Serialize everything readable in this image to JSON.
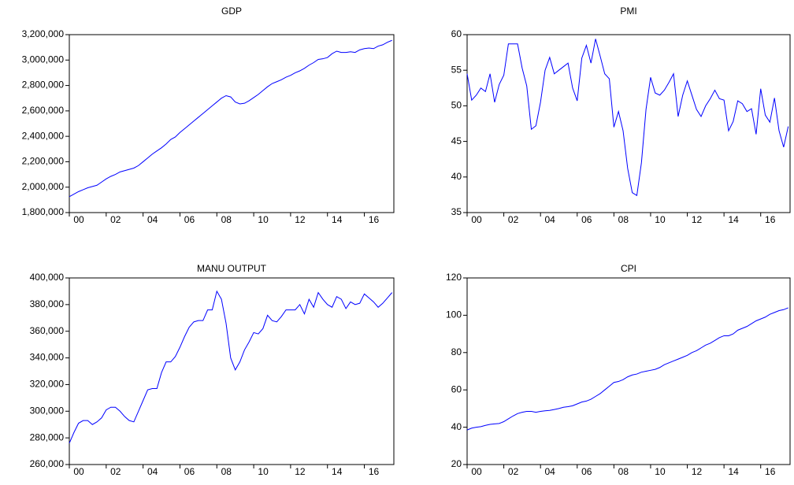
{
  "chart_data": [
    {
      "type": "line",
      "title": "GDP",
      "x": [
        2000,
        2000.25,
        2000.5,
        2000.75,
        2001,
        2001.25,
        2001.5,
        2001.75,
        2002,
        2002.25,
        2002.5,
        2002.75,
        2003,
        2003.25,
        2003.5,
        2003.75,
        2004,
        2004.25,
        2004.5,
        2004.75,
        2005,
        2005.25,
        2005.5,
        2005.75,
        2006,
        2006.25,
        2006.5,
        2006.75,
        2007,
        2007.25,
        2007.5,
        2007.75,
        2008,
        2008.25,
        2008.5,
        2008.75,
        2009,
        2009.25,
        2009.5,
        2009.75,
        2010,
        2010.25,
        2010.5,
        2010.75,
        2011,
        2011.25,
        2011.5,
        2011.75,
        2012,
        2012.25,
        2012.5,
        2012.75,
        2013,
        2013.25,
        2013.5,
        2013.75,
        2014,
        2014.25,
        2014.5,
        2014.75,
        2015,
        2015.25,
        2015.5,
        2015.75,
        2016,
        2016.25,
        2016.5,
        2016.75,
        2017,
        2017.25,
        2017.5
      ],
      "series": [
        {
          "name": "GDP",
          "color": "#0000ff",
          "values": [
            1925000,
            1945000,
            1965000,
            1980000,
            1995000,
            2005000,
            2015000,
            2040000,
            2065000,
            2085000,
            2100000,
            2120000,
            2130000,
            2140000,
            2150000,
            2170000,
            2200000,
            2230000,
            2260000,
            2285000,
            2310000,
            2340000,
            2375000,
            2395000,
            2430000,
            2460000,
            2490000,
            2520000,
            2550000,
            2580000,
            2610000,
            2640000,
            2670000,
            2700000,
            2720000,
            2710000,
            2670000,
            2655000,
            2660000,
            2680000,
            2705000,
            2730000,
            2760000,
            2790000,
            2815000,
            2830000,
            2845000,
            2865000,
            2880000,
            2900000,
            2915000,
            2935000,
            2960000,
            2980000,
            3005000,
            3010000,
            3020000,
            3050000,
            3070000,
            3060000,
            3060000,
            3065000,
            3060000,
            3080000,
            3090000,
            3095000,
            3090000,
            3110000,
            3120000,
            3140000,
            3155000
          ]
        }
      ],
      "xlim": [
        2000,
        2017.6
      ],
      "xticks": [
        {
          "value": 2000,
          "label": "00"
        },
        {
          "value": 2002,
          "label": "02"
        },
        {
          "value": 2004,
          "label": "04"
        },
        {
          "value": 2006,
          "label": "06"
        },
        {
          "value": 2008,
          "label": "08"
        },
        {
          "value": 2010,
          "label": "10"
        },
        {
          "value": 2012,
          "label": "12"
        },
        {
          "value": 2014,
          "label": "14"
        },
        {
          "value": 2016,
          "label": "16"
        }
      ],
      "ylim": [
        1800000,
        3200000
      ],
      "yticks": [
        {
          "value": 1800000,
          "label": "1,800,000"
        },
        {
          "value": 2000000,
          "label": "2,000,000"
        },
        {
          "value": 2200000,
          "label": "2,200,000"
        },
        {
          "value": 2400000,
          "label": "2,400,000"
        },
        {
          "value": 2600000,
          "label": "2,600,000"
        },
        {
          "value": 2800000,
          "label": "2,800,000"
        },
        {
          "value": 3000000,
          "label": "3,000,000"
        },
        {
          "value": 3200000,
          "label": "3,200,000"
        }
      ]
    },
    {
      "type": "line",
      "title": "PMI",
      "x": [
        2000,
        2000.25,
        2000.5,
        2000.75,
        2001,
        2001.25,
        2001.5,
        2001.75,
        2002,
        2002.25,
        2002.5,
        2002.75,
        2003,
        2003.25,
        2003.5,
        2003.75,
        2004,
        2004.25,
        2004.5,
        2004.75,
        2005,
        2005.25,
        2005.5,
        2005.75,
        2006,
        2006.25,
        2006.5,
        2006.75,
        2007,
        2007.25,
        2007.5,
        2007.75,
        2008,
        2008.25,
        2008.5,
        2008.75,
        2009,
        2009.25,
        2009.5,
        2009.75,
        2010,
        2010.25,
        2010.5,
        2010.75,
        2011,
        2011.25,
        2011.5,
        2011.75,
        2012,
        2012.25,
        2012.5,
        2012.75,
        2013,
        2013.25,
        2013.5,
        2013.75,
        2014,
        2014.25,
        2014.5,
        2014.75,
        2015,
        2015.25,
        2015.5,
        2015.75,
        2016,
        2016.25,
        2016.5,
        2016.75,
        2017,
        2017.25,
        2017.5
      ],
      "series": [
        {
          "name": "PMI",
          "color": "#0000ff",
          "values": [
            54.5,
            50.8,
            51.5,
            52.5,
            52.0,
            54.5,
            50.5,
            53.0,
            54.3,
            58.7,
            58.7,
            58.7,
            55.3,
            52.8,
            46.7,
            47.2,
            50.5,
            55.0,
            56.8,
            54.5,
            55.0,
            55.5,
            56.0,
            52.5,
            50.7,
            56.7,
            58.5,
            56.0,
            59.4,
            57.0,
            54.5,
            53.8,
            47.0,
            49.2,
            46.5,
            41.2,
            37.8,
            37.4,
            42.0,
            49.5,
            54.0,
            51.8,
            51.5,
            52.2,
            53.3,
            54.5,
            48.5,
            51.5,
            53.5,
            51.5,
            49.5,
            48.5,
            50.0,
            51.0,
            52.2,
            51.0,
            50.8,
            46.5,
            47.8,
            50.7,
            50.3,
            49.2,
            49.6,
            46.0,
            52.4,
            48.7,
            47.7,
            51.1,
            46.5,
            44.2,
            47.1
          ]
        }
      ],
      "xlim": [
        2000,
        2017.6
      ],
      "xticks": [
        {
          "value": 2000,
          "label": "00"
        },
        {
          "value": 2002,
          "label": "02"
        },
        {
          "value": 2004,
          "label": "04"
        },
        {
          "value": 2006,
          "label": "06"
        },
        {
          "value": 2008,
          "label": "08"
        },
        {
          "value": 2010,
          "label": "10"
        },
        {
          "value": 2012,
          "label": "12"
        },
        {
          "value": 2014,
          "label": "14"
        },
        {
          "value": 2016,
          "label": "16"
        }
      ],
      "ylim": [
        35,
        60
      ],
      "yticks": [
        35,
        40,
        45,
        50,
        55,
        60
      ]
    },
    {
      "type": "line",
      "title": "MANU OUTPUT",
      "x": [
        2000,
        2000.25,
        2000.5,
        2000.75,
        2001,
        2001.25,
        2001.5,
        2001.75,
        2002,
        2002.25,
        2002.5,
        2002.75,
        2003,
        2003.25,
        2003.5,
        2003.75,
        2004,
        2004.25,
        2004.5,
        2004.75,
        2005,
        2005.25,
        2005.5,
        2005.75,
        2006,
        2006.25,
        2006.5,
        2006.75,
        2007,
        2007.25,
        2007.5,
        2007.75,
        2008,
        2008.25,
        2008.5,
        2008.75,
        2009,
        2009.25,
        2009.5,
        2009.75,
        2010,
        2010.25,
        2010.5,
        2010.75,
        2011,
        2011.25,
        2011.5,
        2011.75,
        2012,
        2012.25,
        2012.5,
        2012.75,
        2013,
        2013.25,
        2013.5,
        2013.75,
        2014,
        2014.25,
        2014.5,
        2014.75,
        2015,
        2015.25,
        2015.5,
        2015.75,
        2016,
        2016.25,
        2016.5,
        2016.75,
        2017,
        2017.25,
        2017.5
      ],
      "series": [
        {
          "name": "MANU OUTPUT",
          "color": "#0000ff",
          "values": [
            276000,
            284000,
            291000,
            293000,
            293000,
            290000,
            292000,
            295000,
            301000,
            303000,
            303000,
            300000,
            296000,
            293000,
            292000,
            300000,
            308000,
            316000,
            317000,
            317000,
            329000,
            337000,
            337000,
            341000,
            348000,
            356000,
            363000,
            367000,
            368000,
            368000,
            376000,
            376000,
            390000,
            384000,
            366000,
            340000,
            331000,
            337000,
            346000,
            352000,
            359000,
            358000,
            362000,
            372000,
            368000,
            367000,
            371000,
            376000,
            376000,
            376000,
            380000,
            373000,
            384000,
            378000,
            389000,
            384000,
            380000,
            378000,
            386000,
            384000,
            377000,
            382000,
            380000,
            381000,
            388000,
            385000,
            382000,
            378000,
            381000,
            385000,
            389000
          ]
        }
      ],
      "xlim": [
        2000,
        2017.6
      ],
      "xticks": [
        {
          "value": 2000,
          "label": "00"
        },
        {
          "value": 2002,
          "label": "02"
        },
        {
          "value": 2004,
          "label": "04"
        },
        {
          "value": 2006,
          "label": "06"
        },
        {
          "value": 2008,
          "label": "08"
        },
        {
          "value": 2010,
          "label": "10"
        },
        {
          "value": 2012,
          "label": "12"
        },
        {
          "value": 2014,
          "label": "14"
        },
        {
          "value": 2016,
          "label": "16"
        }
      ],
      "ylim": [
        260000,
        400000
      ],
      "yticks": [
        {
          "value": 260000,
          "label": "260,000"
        },
        {
          "value": 280000,
          "label": "280,000"
        },
        {
          "value": 300000,
          "label": "300,000"
        },
        {
          "value": 320000,
          "label": "320,000"
        },
        {
          "value": 340000,
          "label": "340,000"
        },
        {
          "value": 360000,
          "label": "360,000"
        },
        {
          "value": 380000,
          "label": "380,000"
        },
        {
          "value": 400000,
          "label": "400,000"
        }
      ]
    },
    {
      "type": "line",
      "title": "CPI",
      "x": [
        2000,
        2000.25,
        2000.5,
        2000.75,
        2001,
        2001.25,
        2001.5,
        2001.75,
        2002,
        2002.25,
        2002.5,
        2002.75,
        2003,
        2003.25,
        2003.5,
        2003.75,
        2004,
        2004.25,
        2004.5,
        2004.75,
        2005,
        2005.25,
        2005.5,
        2005.75,
        2006,
        2006.25,
        2006.5,
        2006.75,
        2007,
        2007.25,
        2007.5,
        2007.75,
        2008,
        2008.25,
        2008.5,
        2008.75,
        2009,
        2009.25,
        2009.5,
        2009.75,
        2010,
        2010.25,
        2010.5,
        2010.75,
        2011,
        2011.25,
        2011.5,
        2011.75,
        2012,
        2012.25,
        2012.5,
        2012.75,
        2013,
        2013.25,
        2013.5,
        2013.75,
        2014,
        2014.25,
        2014.5,
        2014.75,
        2015,
        2015.25,
        2015.5,
        2015.75,
        2016,
        2016.25,
        2016.5,
        2016.75,
        2017,
        2017.25,
        2017.5
      ],
      "series": [
        {
          "name": "CPI",
          "color": "#0000ff",
          "values": [
            38.5,
            39.5,
            40,
            40.3,
            41,
            41.5,
            41.8,
            42,
            43,
            44.5,
            46,
            47.3,
            48,
            48.5,
            48.5,
            48,
            48.5,
            48.8,
            49,
            49.5,
            50,
            50.7,
            51,
            51.5,
            52.5,
            53.5,
            54,
            55,
            56.5,
            58,
            60,
            62,
            64,
            64.5,
            65.5,
            67,
            68,
            68.5,
            69.5,
            70,
            70.5,
            71,
            72,
            73.5,
            74.5,
            75.5,
            76.5,
            77.5,
            78.5,
            80,
            81,
            82.5,
            84,
            85,
            86.5,
            88,
            89,
            89,
            90,
            92,
            93,
            94,
            95.5,
            97,
            98,
            99,
            100.5,
            101.5,
            102.5,
            103,
            104
          ]
        }
      ],
      "xlim": [
        2000,
        2017.6
      ],
      "xticks": [
        {
          "value": 2000,
          "label": "00"
        },
        {
          "value": 2002,
          "label": "02"
        },
        {
          "value": 2004,
          "label": "04"
        },
        {
          "value": 2006,
          "label": "06"
        },
        {
          "value": 2008,
          "label": "08"
        },
        {
          "value": 2010,
          "label": "10"
        },
        {
          "value": 2012,
          "label": "12"
        },
        {
          "value": 2014,
          "label": "14"
        },
        {
          "value": 2016,
          "label": "16"
        }
      ],
      "ylim": [
        20,
        120
      ],
      "yticks": [
        20,
        40,
        60,
        80,
        100,
        120
      ]
    }
  ]
}
